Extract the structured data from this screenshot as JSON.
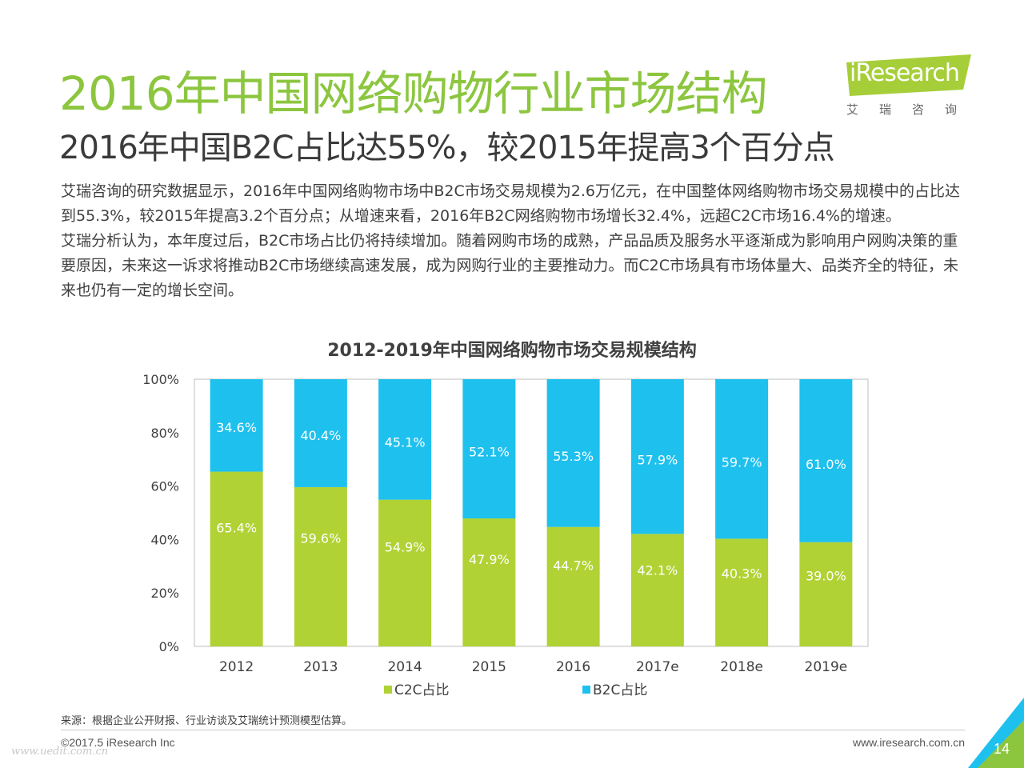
{
  "header": {
    "title": "2016年中国网络购物行业市场结构",
    "subtitle": "2016年中国B2C占比达55%，较2015年提高3个百分点"
  },
  "logo": {
    "brand": "iResearch",
    "sub": "艾瑞咨询",
    "color": "#a6ce39"
  },
  "body": {
    "paragraphs": [
      "艾瑞咨询的研究数据显示，2016年中国网络购物市场中B2C市场交易规模为2.6万亿元，在中国整体网络购物市场交易规模中的占比达到55.3%，较2015年提高3.2个百分点；从增速来看，2016年B2C网络购物市场增长32.4%，远超C2C市场16.4%的增速。",
      "艾瑞分析认为，本年度过后，B2C市场占比仍将持续增加。随着网购市场的成熟，产品品质及服务水平逐渐成为影响用户网购决策的重要原因，未来这一诉求将推动B2C市场继续高速发展，成为网购行业的主要推动力。而C2C市场具有市场体量大、品类齐全的特征，未来也仍有一定的增长空间。"
    ]
  },
  "chart_data": {
    "type": "bar",
    "stacked": true,
    "title": "2012-2019年中国网络购物市场交易规模结构",
    "categories": [
      "2012",
      "2013",
      "2014",
      "2015",
      "2016",
      "2017e",
      "2018e",
      "2019e"
    ],
    "series": [
      {
        "name": "C2C占比",
        "color": "#b0d235",
        "values": [
          65.4,
          59.6,
          54.9,
          47.9,
          44.7,
          42.1,
          40.3,
          39.0
        ],
        "labels": [
          "65.4%",
          "59.6%",
          "54.9%",
          "47.9%",
          "44.7%",
          "42.1%",
          "40.3%",
          "39.0%"
        ]
      },
      {
        "name": "B2C占比",
        "color": "#1ec0ee",
        "values": [
          34.6,
          40.4,
          45.1,
          52.1,
          55.3,
          57.9,
          59.7,
          61.0
        ],
        "labels": [
          "34.6%",
          "40.4%",
          "45.1%",
          "52.1%",
          "55.3%",
          "57.9%",
          "59.7%",
          "61.0%"
        ]
      }
    ],
    "yticks": [
      "0%",
      "20%",
      "40%",
      "60%",
      "80%",
      "100%"
    ],
    "ylim": [
      0,
      100
    ],
    "grid": false,
    "legend": "bottom"
  },
  "footer": {
    "source": "来源：根据企业公开财报、行业访谈及艾瑞统计预测模型估算。",
    "copyright": "©2017.5 iResearch Inc",
    "website": "www.iresearch.com.cn",
    "page": "14",
    "watermark": "www.uedit.com.cn"
  }
}
